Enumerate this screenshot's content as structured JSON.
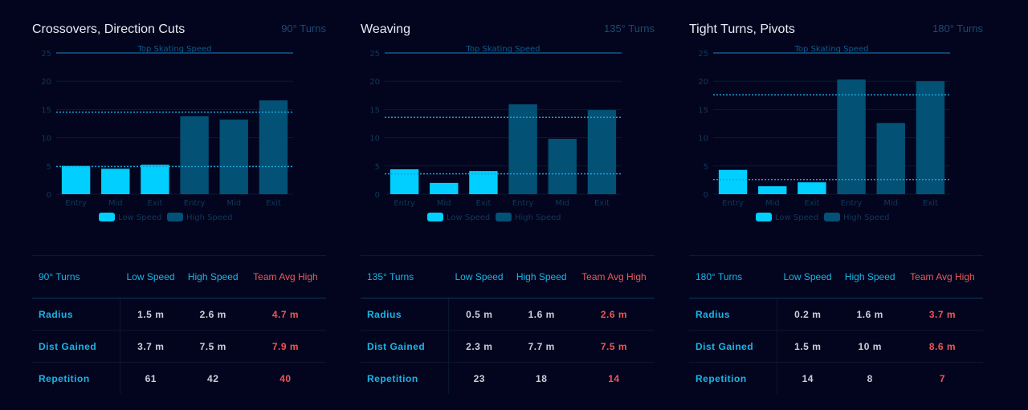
{
  "colors": {
    "low": "#00cfff",
    "high": "#035175",
    "axis_text": "#11375a",
    "grid": "#0a1838",
    "ref_line": "#0d5c8c",
    "avg_line": "#1aa0d6"
  },
  "legend": {
    "low": "Low Speed",
    "high": "High Speed"
  },
  "reference_label": "Top Skating Speed",
  "table_row_labels": [
    "Radius",
    "Dist Gained",
    "Repetition"
  ],
  "table_headers": {
    "low": "Low Speed",
    "high": "High Speed",
    "avg": "Team Avg High"
  },
  "panels": [
    {
      "title": "Crossovers, Direction Cuts",
      "subtitle": "90° Turns",
      "table_corner": "90° Turns",
      "rows": [
        [
          "1.5 m",
          "2.6 m",
          "4.7 m"
        ],
        [
          "3.7 m",
          "7.5 m",
          "7.9 m"
        ],
        [
          "61",
          "42",
          "40"
        ]
      ]
    },
    {
      "title": "Weaving",
      "subtitle": "135° Turns",
      "table_corner": "135° Turns",
      "rows": [
        [
          "0.5 m",
          "1.6 m",
          "2.6 m"
        ],
        [
          "2.3 m",
          "7.7 m",
          "7.5 m"
        ],
        [
          "23",
          "18",
          "14"
        ]
      ]
    },
    {
      "title": "Tight Turns, Pivots",
      "subtitle": "180° Turns",
      "table_corner": "180° Turns",
      "rows": [
        [
          "0.2 m",
          "1.6 m",
          "3.7 m"
        ],
        [
          "1.5 m",
          "10 m",
          "8.6 m"
        ],
        [
          "14",
          "8",
          "7"
        ]
      ]
    }
  ],
  "chart_data": [
    {
      "type": "bar",
      "categories": [
        "Entry",
        "Mid",
        "Exit",
        "Entry",
        "Mid",
        "Exit"
      ],
      "series": [
        {
          "name": "Low Speed",
          "values": [
            5.0,
            4.5,
            5.2,
            null,
            null,
            null
          ]
        },
        {
          "name": "High Speed",
          "values": [
            null,
            null,
            null,
            13.8,
            13.2,
            16.6
          ]
        }
      ],
      "reference_lines": [
        {
          "label": "Top Skating Speed",
          "value": 25
        },
        {
          "value": 14.5,
          "style": "dotted"
        },
        {
          "value": 4.9,
          "style": "dotted"
        }
      ],
      "yticks": [
        0,
        5,
        10,
        15,
        20,
        25
      ],
      "ylim": [
        0,
        25
      ],
      "grid": true,
      "legend": "bottom"
    },
    {
      "type": "bar",
      "categories": [
        "Entry",
        "Mid",
        "Exit",
        "Entry",
        "Mid",
        "Exit"
      ],
      "series": [
        {
          "name": "Low Speed",
          "values": [
            4.4,
            2.0,
            4.1,
            null,
            null,
            null
          ]
        },
        {
          "name": "High Speed",
          "values": [
            null,
            null,
            null,
            15.9,
            9.8,
            14.9
          ]
        }
      ],
      "reference_lines": [
        {
          "label": "Top Skating Speed",
          "value": 25
        },
        {
          "value": 13.6,
          "style": "dotted"
        },
        {
          "value": 3.6,
          "style": "dotted"
        }
      ],
      "yticks": [
        0,
        5,
        10,
        15,
        20,
        25
      ],
      "ylim": [
        0,
        25
      ],
      "grid": true,
      "legend": "bottom"
    },
    {
      "type": "bar",
      "categories": [
        "Entry",
        "Mid",
        "Exit",
        "Entry",
        "Mid",
        "Exit"
      ],
      "series": [
        {
          "name": "Low Speed",
          "values": [
            4.3,
            1.4,
            2.1,
            null,
            null,
            null
          ]
        },
        {
          "name": "High Speed",
          "values": [
            null,
            null,
            null,
            20.3,
            12.6,
            20.0
          ]
        }
      ],
      "reference_lines": [
        {
          "label": "Top Skating Speed",
          "value": 25
        },
        {
          "value": 17.6,
          "style": "dotted"
        },
        {
          "value": 2.6,
          "style": "dotted"
        }
      ],
      "yticks": [
        0,
        5,
        10,
        15,
        20,
        25
      ],
      "ylim": [
        0,
        25
      ],
      "grid": true,
      "legend": "bottom"
    }
  ]
}
